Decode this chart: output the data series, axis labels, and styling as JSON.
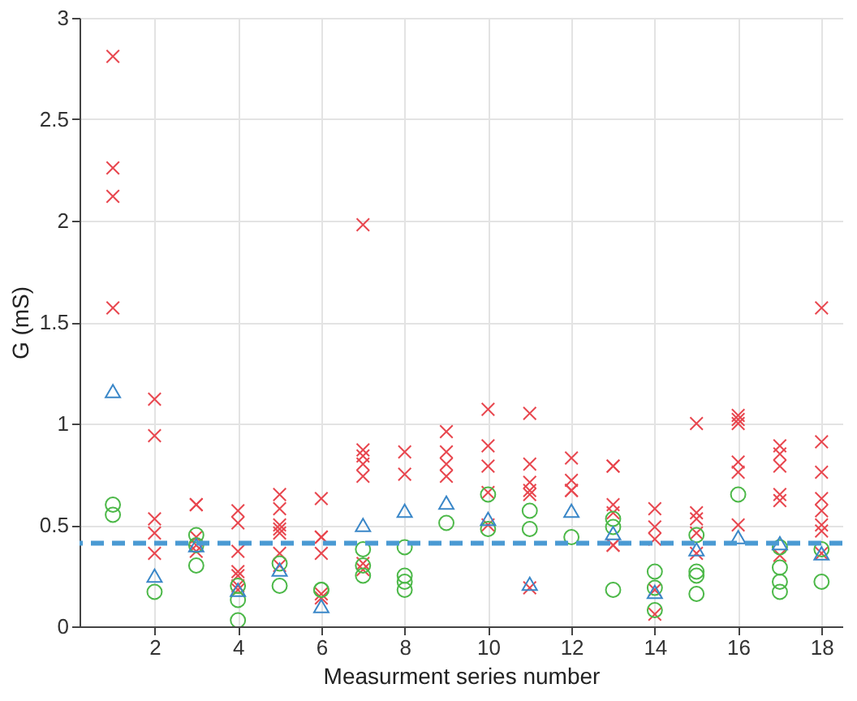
{
  "chart_data": {
    "type": "scatter",
    "xlabel": "Measurment series number",
    "ylabel": "G (mS)",
    "xlim": [
      0.2,
      18.5
    ],
    "xticks": [
      2,
      4,
      6,
      8,
      10,
      12,
      14,
      16,
      18
    ],
    "ylim": [
      0,
      3
    ],
    "yticks": [
      0,
      0.5,
      1,
      1.5,
      2,
      2.5,
      3
    ],
    "grid": true,
    "series": [
      {
        "color": "#e8474f",
        "marker": "cross",
        "x": [
          1,
          1,
          1,
          1,
          2,
          2,
          2,
          2,
          2,
          3,
          3,
          3,
          3,
          3,
          4,
          4,
          4,
          4,
          4,
          4,
          4,
          5,
          5,
          5,
          5,
          5,
          5,
          5,
          6,
          6,
          6,
          6,
          6,
          6,
          7,
          7,
          7,
          7,
          7,
          7,
          7,
          8,
          8,
          9,
          9,
          9,
          9,
          10,
          10,
          10,
          10,
          10,
          11,
          11,
          11,
          11,
          11,
          11,
          12,
          12,
          12,
          12,
          13,
          13,
          13,
          13,
          13,
          13,
          14,
          14,
          14,
          14,
          14,
          15,
          15,
          15,
          15,
          15,
          16,
          16,
          16,
          16,
          16,
          16,
          17,
          17,
          17,
          17,
          17,
          17,
          18,
          18,
          18,
          18,
          18,
          18,
          18,
          18
        ],
        "values": [
          2.81,
          2.26,
          2.12,
          1.57,
          1.12,
          0.94,
          0.53,
          0.46,
          0.36,
          0.6,
          0.6,
          0.44,
          0.4,
          0.37,
          0.57,
          0.51,
          0.37,
          0.27,
          0.25,
          0.2,
          0.18,
          0.65,
          0.58,
          0.5,
          0.48,
          0.46,
          0.36,
          0.3,
          0.63,
          0.44,
          0.44,
          0.36,
          0.16,
          0.14,
          1.98,
          0.87,
          0.84,
          0.8,
          0.74,
          0.31,
          0.28,
          0.86,
          0.75,
          0.96,
          0.86,
          0.8,
          0.74,
          1.07,
          0.89,
          0.79,
          0.66,
          0.5,
          1.05,
          0.8,
          0.71,
          0.67,
          0.65,
          0.19,
          0.83,
          0.72,
          0.67,
          0.67,
          0.79,
          0.79,
          0.6,
          0.56,
          0.4,
          0.4,
          0.58,
          0.49,
          0.43,
          0.18,
          0.06,
          1.0,
          0.56,
          0.53,
          0.46,
          0.36,
          1.04,
          1.02,
          1.0,
          0.81,
          0.76,
          0.5,
          0.89,
          0.85,
          0.79,
          0.65,
          0.62,
          0.35,
          1.57,
          0.91,
          0.76,
          0.63,
          0.57,
          0.5,
          0.47,
          0.36
        ]
      },
      {
        "color": "#4cb848",
        "marker": "circle",
        "x": [
          1,
          1,
          2,
          3,
          3,
          3,
          4,
          4,
          4,
          5,
          5,
          6,
          6,
          7,
          7,
          7,
          8,
          8,
          8,
          8,
          9,
          10,
          10,
          11,
          11,
          12,
          13,
          13,
          13,
          14,
          14,
          14,
          15,
          15,
          15,
          15,
          16,
          17,
          17,
          17,
          17,
          18,
          18
        ],
        "values": [
          0.6,
          0.55,
          0.17,
          0.45,
          0.4,
          0.3,
          0.2,
          0.13,
          0.03,
          0.31,
          0.2,
          0.18,
          0.18,
          0.38,
          0.3,
          0.25,
          0.39,
          0.25,
          0.22,
          0.18,
          0.51,
          0.65,
          0.48,
          0.57,
          0.48,
          0.44,
          0.53,
          0.49,
          0.18,
          0.27,
          0.19,
          0.08,
          0.45,
          0.27,
          0.25,
          0.16,
          0.65,
          0.39,
          0.29,
          0.22,
          0.17,
          0.38,
          0.22
        ]
      },
      {
        "color": "#3a87c8",
        "marker": "triangle",
        "x": [
          1,
          2,
          3,
          4,
          5,
          6,
          7,
          8,
          9,
          10,
          11,
          12,
          13,
          14,
          15,
          16,
          17,
          18
        ],
        "values": [
          1.16,
          0.25,
          0.4,
          0.18,
          0.28,
          0.1,
          0.5,
          0.57,
          0.61,
          0.53,
          0.21,
          0.57,
          0.46,
          0.17,
          0.38,
          0.44,
          0.41,
          0.36
        ]
      }
    ],
    "ref_lines": [
      {
        "axis": "y",
        "value": 0.41,
        "color": "#4a9ad3",
        "line_style": "dashed"
      }
    ]
  }
}
